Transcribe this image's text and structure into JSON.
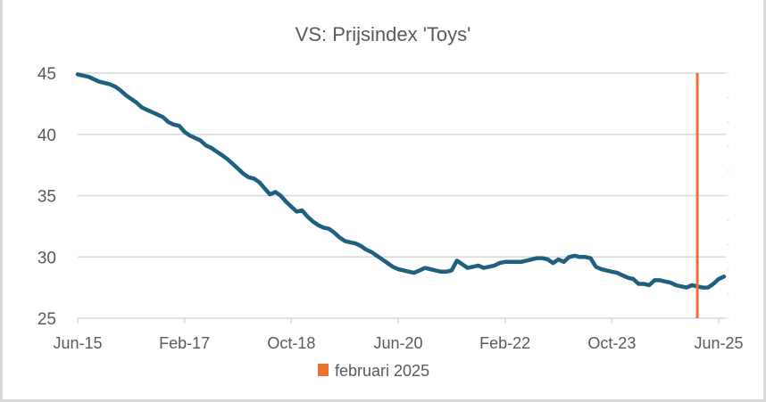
{
  "chart_data": {
    "type": "line",
    "title": "VS: Prijsindex 'Toys'",
    "xlabel": "",
    "ylabel": "",
    "ylim": [
      25,
      45
    ],
    "yticks": [
      "25",
      "30",
      "35",
      "40",
      "45"
    ],
    "ytick_values": [
      25,
      30,
      35,
      40,
      45
    ],
    "xtick_labels": [
      "Jun-15",
      "Feb-17",
      "Oct-18",
      "Jun-20",
      "Feb-22",
      "Oct-23",
      "Jun-25"
    ],
    "xtick_months": [
      0,
      20,
      40,
      60,
      80,
      100,
      120
    ],
    "x_unit": "months since Jun-15",
    "xlim": [
      0,
      121
    ],
    "grid": "horizontal",
    "series": [
      {
        "name": "Prijsindex Toys",
        "color": "#1f5f80",
        "x": [
          0,
          1,
          2,
          4,
          5,
          6,
          7,
          8,
          9,
          10,
          11,
          12,
          13,
          14,
          15,
          16,
          17,
          18,
          19,
          20,
          21,
          22,
          23,
          24,
          25,
          26,
          27,
          28,
          29,
          30,
          31,
          32,
          33,
          34,
          35,
          36,
          37,
          38,
          39,
          40,
          41,
          42,
          43,
          44,
          45,
          46,
          47,
          48,
          49,
          50,
          51,
          52,
          53,
          54,
          55,
          56,
          57,
          58,
          59,
          60,
          62,
          63,
          64,
          65,
          66,
          67,
          68,
          69,
          70,
          71,
          72,
          73,
          74,
          75,
          76,
          78,
          79,
          80,
          81,
          83,
          84,
          85,
          86,
          87,
          88,
          89,
          90,
          91,
          92,
          93,
          94,
          95,
          96,
          97,
          98,
          99,
          100,
          101,
          102,
          103,
          104,
          105,
          106,
          107,
          108,
          109,
          110,
          111,
          112,
          113,
          114,
          115,
          116,
          117,
          118,
          119,
          120,
          121
        ],
        "values": [
          44.9,
          44.8,
          44.7,
          44.3,
          44.2,
          44.1,
          43.9,
          43.6,
          43.2,
          42.9,
          42.6,
          42.2,
          42.0,
          41.8,
          41.6,
          41.4,
          41.0,
          40.8,
          40.7,
          40.2,
          39.9,
          39.7,
          39.5,
          39.1,
          38.9,
          38.6,
          38.3,
          38.0,
          37.6,
          37.2,
          36.8,
          36.5,
          36.4,
          36.1,
          35.6,
          35.1,
          35.3,
          35.0,
          34.5,
          34.1,
          33.7,
          33.8,
          33.3,
          32.9,
          32.6,
          32.4,
          32.3,
          32.0,
          31.6,
          31.3,
          31.2,
          31.1,
          30.9,
          30.6,
          30.4,
          30.1,
          29.8,
          29.5,
          29.2,
          29.0,
          28.8,
          28.7,
          28.9,
          29.1,
          29.0,
          28.9,
          28.8,
          28.8,
          28.9,
          29.7,
          29.4,
          29.1,
          29.2,
          29.3,
          29.1,
          29.3,
          29.5,
          29.6,
          29.6,
          29.6,
          29.7,
          29.8,
          29.9,
          29.9,
          29.8,
          29.5,
          29.8,
          29.6,
          30.0,
          30.1,
          30.0,
          30.0,
          29.9,
          29.2,
          29.0,
          28.9,
          28.8,
          28.7,
          28.5,
          28.3,
          28.2,
          27.8,
          27.8,
          27.7,
          28.1,
          28.1,
          28.0,
          27.9,
          27.7,
          27.6,
          27.5,
          27.7,
          27.6,
          27.5,
          27.5,
          27.8,
          28.2,
          28.4
        ]
      }
    ],
    "annotations": [
      {
        "type": "vertical_line",
        "label": "februari 2025",
        "x": 116,
        "color": "#e97132"
      }
    ],
    "legend": {
      "position": "bottom",
      "entries": [
        {
          "label": "februari 2025",
          "color": "#e97132"
        }
      ]
    }
  }
}
